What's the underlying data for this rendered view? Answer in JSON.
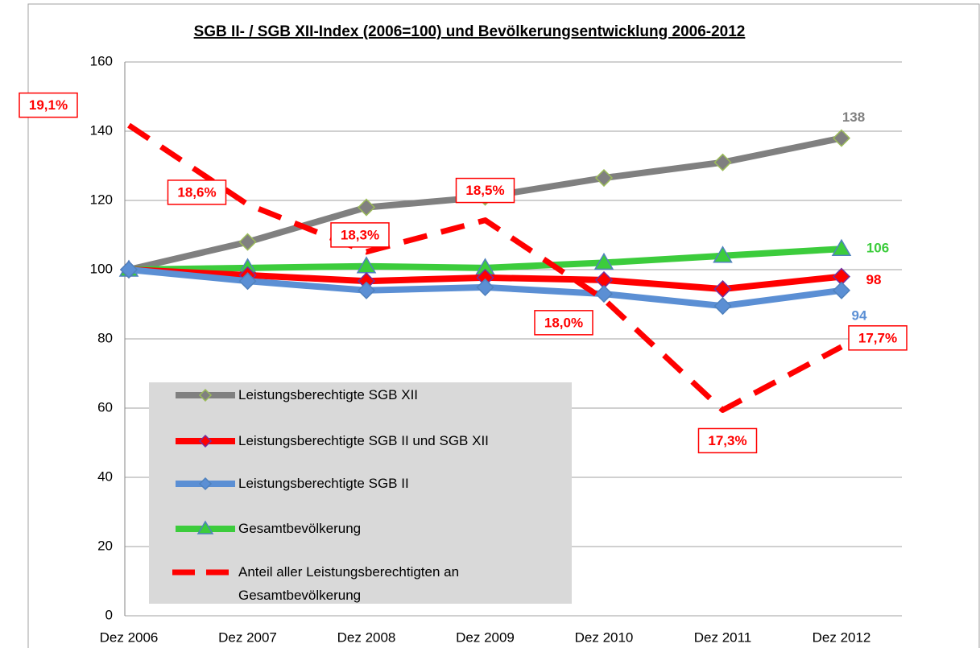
{
  "chart_data": {
    "type": "line",
    "title": "SGB II- / SGB XII-Index (2006=100) und Bevölkerungsentwicklung 2006-2012",
    "categories": [
      "Dez 2006",
      "Dez 2007",
      "Dez 2008",
      "Dez 2009",
      "Dez 2010",
      "Dez 2011",
      "Dez 2012"
    ],
    "ylim": [
      0,
      160
    ],
    "yticks": [
      0,
      20,
      40,
      60,
      80,
      100,
      120,
      140,
      160
    ],
    "grid": true,
    "y2lim": [
      16,
      19.5
    ],
    "data_labels": "last",
    "series": [
      {
        "name": "Leistungsberechtigte SGB XII",
        "color": "#808080",
        "marker": "diamond",
        "marker_edge": "#9bbb59",
        "values": [
          100,
          108,
          118,
          121,
          126.5,
          131,
          138
        ]
      },
      {
        "name": "Leistungsberechtigte SGB II und SGB XII",
        "color": "#ff0000",
        "marker": "diamond",
        "marker_edge": "#7030a0",
        "values": [
          100,
          98.4,
          96.7,
          97.7,
          97,
          94.4,
          98
        ]
      },
      {
        "name": "Leistungsberechtigte SGB II",
        "color": "#5b8fd4",
        "marker": "diamond",
        "marker_edge": "#4f81bd",
        "values": [
          100,
          96.7,
          94,
          94.9,
          93,
          89.5,
          94
        ]
      },
      {
        "name": "Gesamtbevölkerung",
        "color": "#3ccc3c",
        "marker": "triangle",
        "marker_edge": "#4f81bd",
        "values": [
          100,
          100.5,
          101,
          100.5,
          102,
          104,
          106
        ]
      },
      {
        "name": "Anteil aller Leistungsberechtigten an Gesamtbevölkerung",
        "color": "#ff0000",
        "dash": true,
        "axis": "y2",
        "values": [
          19.1,
          18.6,
          18.3,
          18.5,
          18.0,
          17.3,
          17.7
        ],
        "value_labels": [
          "19,1%",
          "18,6%",
          "18,3%",
          "18,5%",
          "18,0%",
          "17,3%",
          "17,7%"
        ]
      }
    ]
  }
}
